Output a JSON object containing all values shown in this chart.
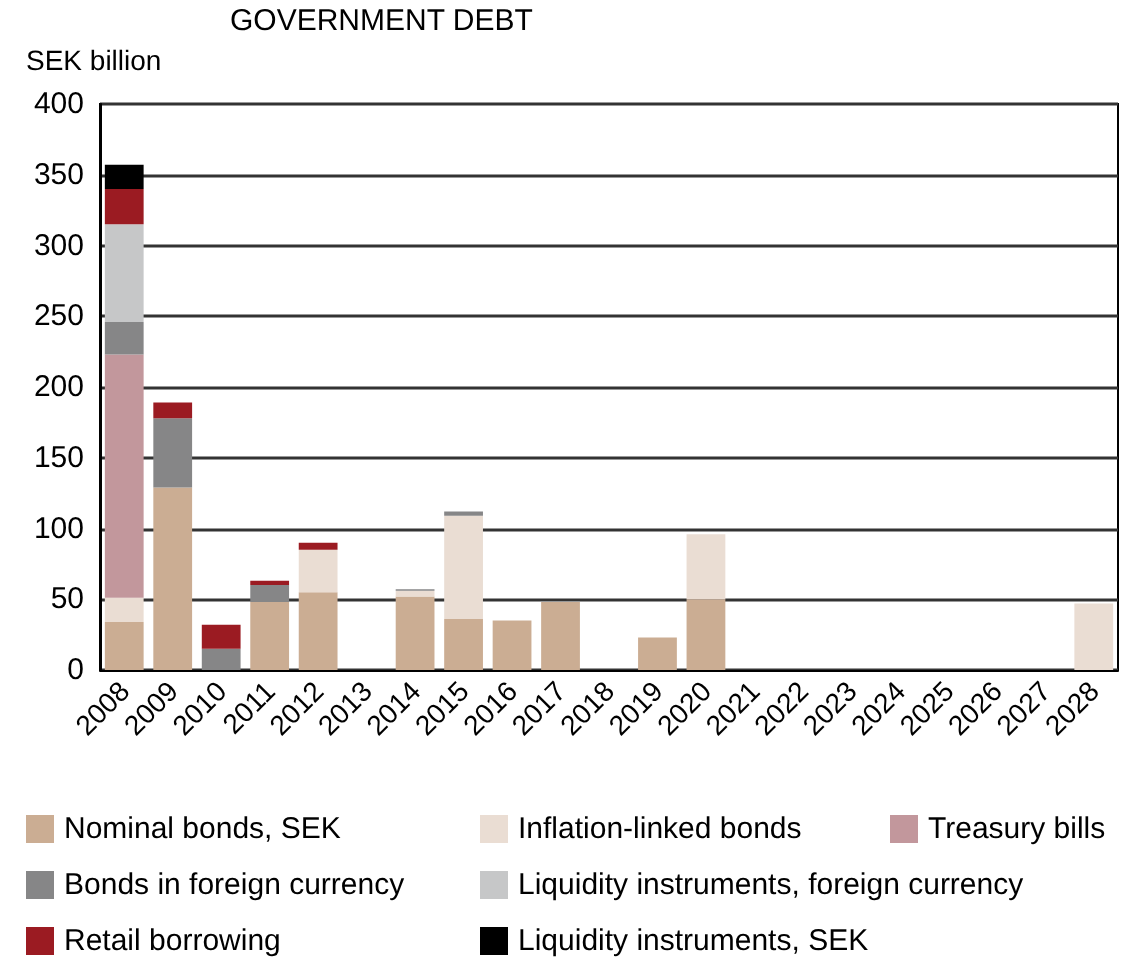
{
  "chart_data": {
    "type": "bar",
    "title": "GOVERNMENT DEBT",
    "ylabel": "SEK billion",
    "stacked": true,
    "categories": [
      "2008",
      "2009",
      "2010",
      "2011",
      "2012",
      "2013",
      "2014",
      "2015",
      "2016",
      "2017",
      "2018",
      "2019",
      "2020",
      "2021",
      "2022",
      "2023",
      "2024",
      "2025",
      "2026",
      "2027",
      "2028"
    ],
    "series": [
      {
        "name": "Nominal bonds, SEK",
        "color": "#cbad93",
        "values": [
          34,
          129,
          null,
          48,
          55,
          null,
          52,
          36,
          35,
          48,
          null,
          23,
          50,
          null,
          null,
          null,
          null,
          null,
          null,
          null,
          null
        ]
      },
      {
        "name": "Inflation-linked bonds",
        "color": "#eaddd3",
        "values": [
          17,
          null,
          null,
          null,
          30,
          null,
          4,
          73,
          null,
          null,
          null,
          null,
          46,
          null,
          null,
          null,
          null,
          null,
          null,
          null,
          47
        ]
      },
      {
        "name": "Treasury bills",
        "color": "#c2979c",
        "values": [
          172,
          null,
          null,
          null,
          null,
          null,
          null,
          null,
          null,
          null,
          null,
          null,
          null,
          null,
          null,
          null,
          null,
          null,
          null,
          null,
          null
        ]
      },
      {
        "name": "Bonds in foreign currency",
        "color": "#868687",
        "values": [
          23,
          49,
          15,
          12,
          null,
          null,
          1,
          3,
          null,
          null,
          null,
          null,
          null,
          null,
          null,
          null,
          null,
          null,
          null,
          null,
          null
        ]
      },
      {
        "name": "Liquidity instruments, foreign currency",
        "color": "#c6c7c8",
        "values": [
          69,
          null,
          null,
          null,
          null,
          null,
          null,
          null,
          null,
          null,
          null,
          null,
          null,
          null,
          null,
          null,
          null,
          null,
          null,
          null,
          null
        ]
      },
      {
        "name": "Retail borrowing",
        "color": "#9b1b22",
        "values": [
          25,
          11,
          17,
          3,
          5,
          null,
          null,
          null,
          null,
          null,
          null,
          null,
          null,
          null,
          null,
          null,
          null,
          null,
          null,
          null,
          null
        ]
      },
      {
        "name": "Liquidity instruments, SEK",
        "color": "#000000",
        "values": [
          17,
          null,
          null,
          null,
          null,
          null,
          null,
          null,
          null,
          null,
          null,
          null,
          null,
          null,
          null,
          null,
          null,
          null,
          null,
          null,
          null
        ]
      }
    ],
    "ylim": [
      0,
      400
    ],
    "yticks": [
      0,
      50,
      100,
      150,
      200,
      250,
      300,
      350,
      400
    ],
    "grid": "y",
    "legend": "bottom"
  }
}
